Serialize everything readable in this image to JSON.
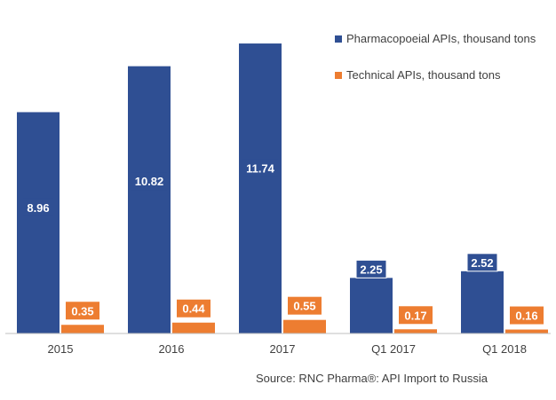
{
  "chart_data": {
    "type": "bar",
    "categories": [
      "2015",
      "2016",
      "2017",
      "Q1 2017",
      "Q1 2018"
    ],
    "series": [
      {
        "name": "Pharmacopoeial APIs, thousand tons",
        "color": "#2f4f93",
        "values": [
          8.96,
          10.82,
          11.74,
          2.25,
          2.52
        ],
        "labels": [
          "8.96",
          "10.82",
          "11.74",
          "2.25",
          "2.52"
        ]
      },
      {
        "name": "Technical APIs, thousand tons",
        "color": "#ed7d31",
        "values": [
          0.35,
          0.44,
          0.55,
          0.17,
          0.16
        ],
        "labels": [
          "0.35",
          "0.44",
          "0.55",
          "0.17",
          "0.16"
        ]
      }
    ],
    "ylim": [
      0,
      13
    ],
    "grid": false,
    "legend_position": "top-right",
    "source_note": "Source: RNC Pharma®: API Import to Russia"
  }
}
